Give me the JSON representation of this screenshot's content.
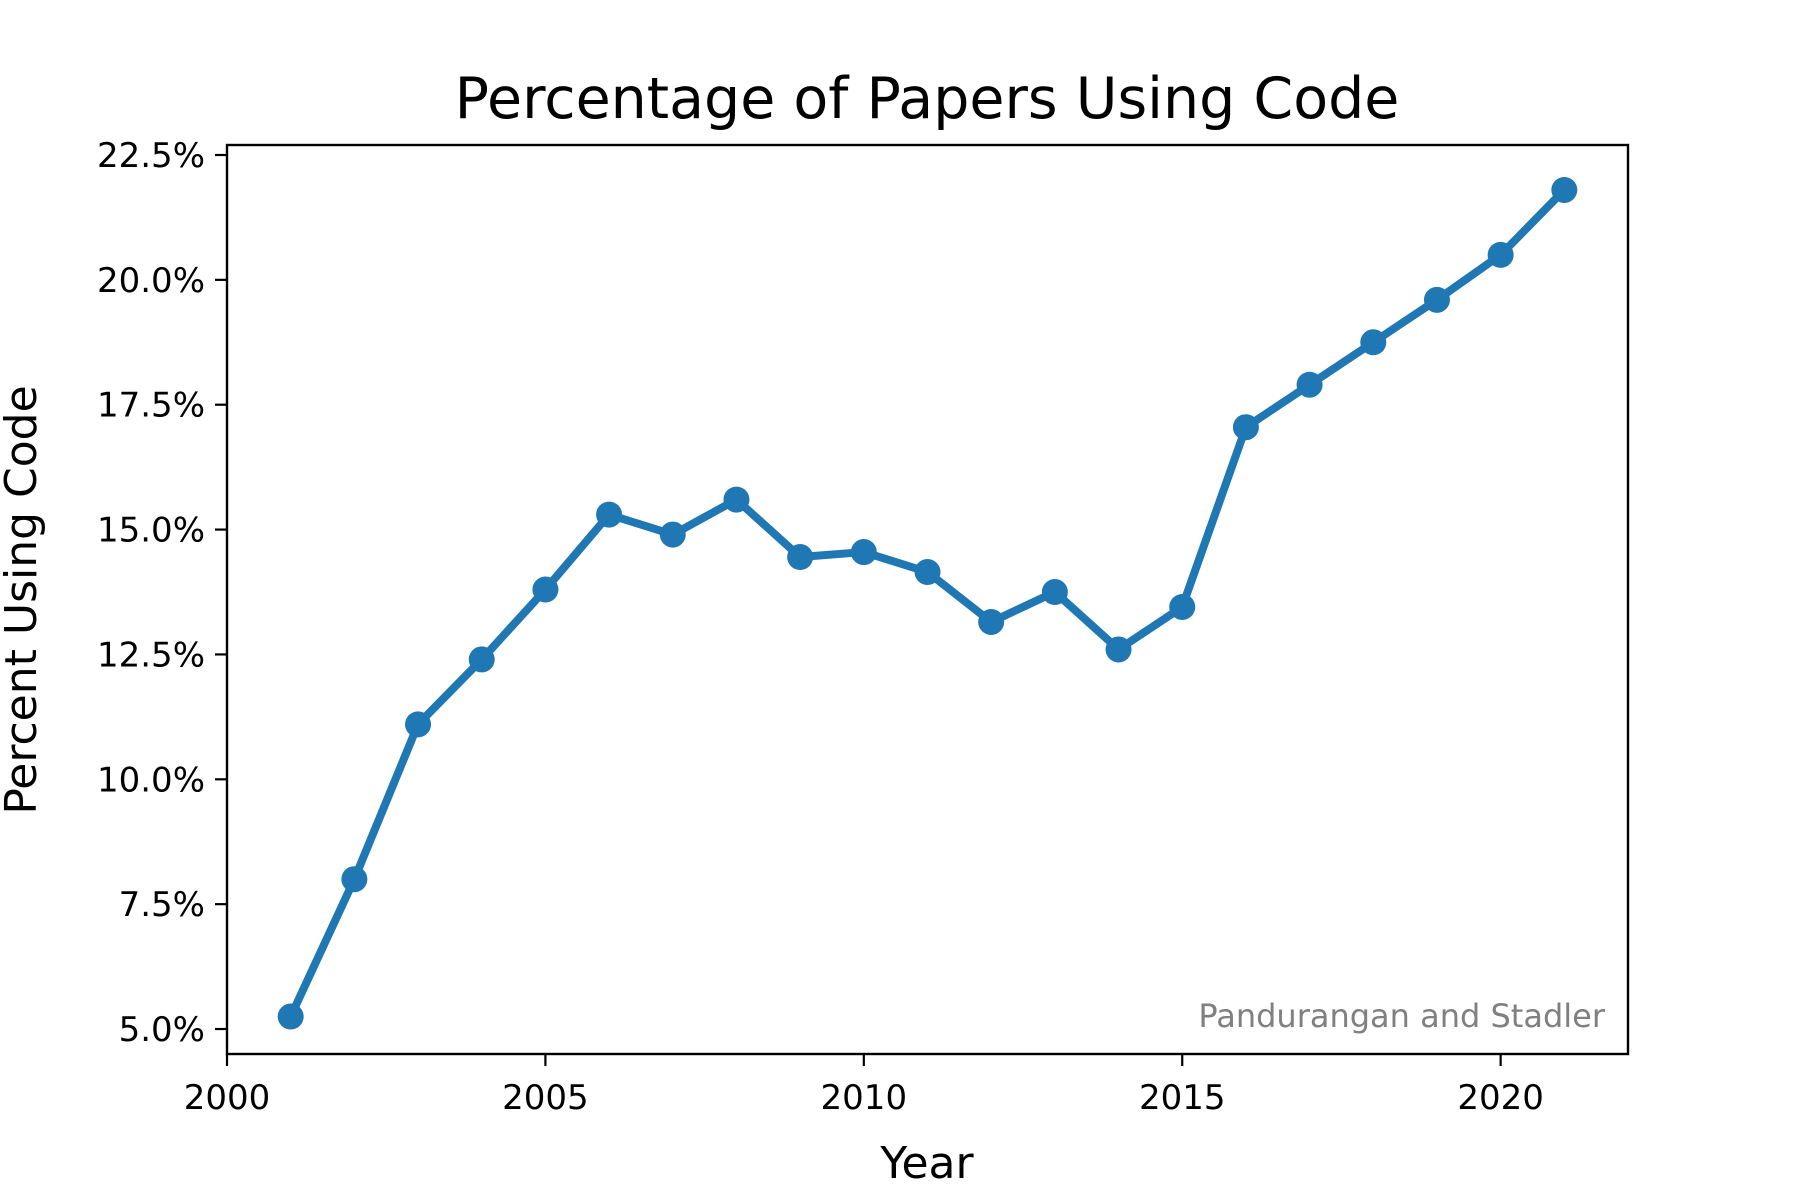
{
  "chart_data": {
    "type": "line",
    "title": "Percentage of Papers Using Code",
    "xlabel": "Year",
    "ylabel": "Percent Using Code",
    "annotation": "Pandurangan and Stadler",
    "xlim": [
      2000,
      2022
    ],
    "ylim": [
      4.5,
      22.7
    ],
    "x_ticks": [
      2000,
      2005,
      2010,
      2015,
      2020
    ],
    "y_ticks": [
      5.0,
      7.5,
      10.0,
      12.5,
      15.0,
      17.5,
      20.0,
      22.5
    ],
    "y_tick_labels": [
      "5.0%",
      "7.5%",
      "10.0%",
      "12.5%",
      "15.0%",
      "17.5%",
      "20.0%",
      "22.5%"
    ],
    "legend": "none",
    "grid": false,
    "series": [
      {
        "color": "#1f77b4",
        "marker": "circle",
        "x": [
          2001,
          2002,
          2003,
          2004,
          2005,
          2006,
          2007,
          2008,
          2009,
          2010,
          2011,
          2012,
          2013,
          2014,
          2015,
          2016,
          2017,
          2018,
          2019,
          2020,
          2021
        ],
        "y": [
          5.25,
          8.0,
          11.1,
          12.4,
          13.8,
          15.3,
          14.9,
          15.6,
          14.45,
          14.55,
          14.15,
          13.15,
          13.75,
          12.6,
          13.45,
          17.05,
          17.9,
          18.75,
          19.6,
          20.5,
          21.8
        ]
      }
    ]
  }
}
